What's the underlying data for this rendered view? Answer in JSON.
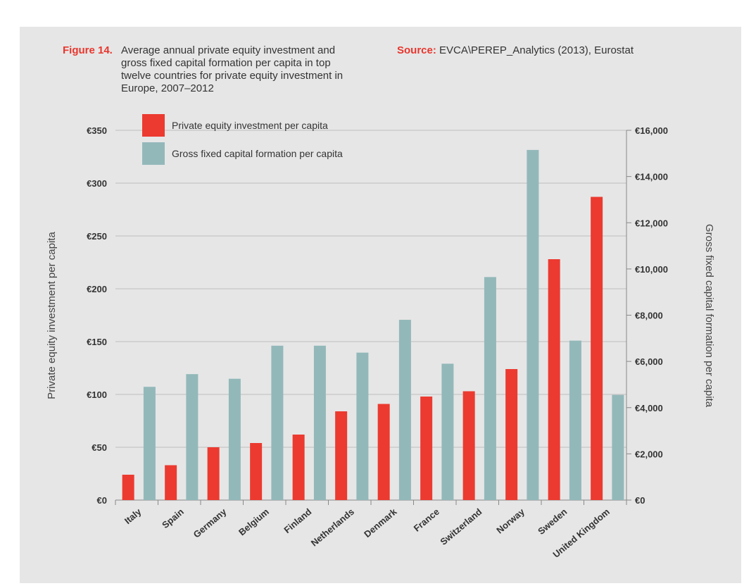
{
  "figure": {
    "label": "Figure 14.",
    "title": "Average annual private equity investment and gross fixed capital formation per capita in top twelve countries for private equity investment in Europe, 2007–2012"
  },
  "source": {
    "label": "Source:",
    "text": "EVCA\\PEREP_Analytics (2013), Eurostat"
  },
  "colors": {
    "pe": "#ec3a30",
    "gfcf": "#93b8ba",
    "background": "#e6e6e6",
    "grid": "#bfbfbf"
  },
  "chart_data": {
    "type": "bar",
    "categories": [
      "Italy",
      "Spain",
      "Germany",
      "Belgium",
      "Finland",
      "Netherlands",
      "Denmark",
      "France",
      "Switzerland",
      "Norway",
      "Sweden",
      "United Kingdom"
    ],
    "series": [
      {
        "name": "Private equity investment per capita",
        "axis": "left",
        "color": "#ec3a30",
        "values": [
          24,
          33,
          50,
          54,
          62,
          84,
          91,
          98,
          103,
          124,
          228,
          287
        ]
      },
      {
        "name": "Gross fixed capital formation per capita",
        "axis": "right",
        "color": "#93b8ba",
        "values": [
          4900,
          5450,
          5250,
          6680,
          6680,
          6380,
          7800,
          5900,
          9650,
          15150,
          6900,
          4550
        ]
      }
    ],
    "y_left": {
      "label": "Private equity investment per capita",
      "min": 0,
      "max": 350,
      "step": 50,
      "tick_labels": [
        "€0",
        "€50",
        "€100",
        "€150",
        "€200",
        "€250",
        "€300",
        "€350"
      ]
    },
    "y_right": {
      "label": "Gross fixed capital formation per capita",
      "min": 0,
      "max": 16000,
      "step": 2000,
      "tick_labels": [
        "€0",
        "€2,000",
        "€4,000",
        "€6,000",
        "€8,000",
        "€10,000",
        "€12,000",
        "€14,000",
        "€16,000"
      ]
    },
    "grid": true,
    "legend_position": "top-left"
  }
}
